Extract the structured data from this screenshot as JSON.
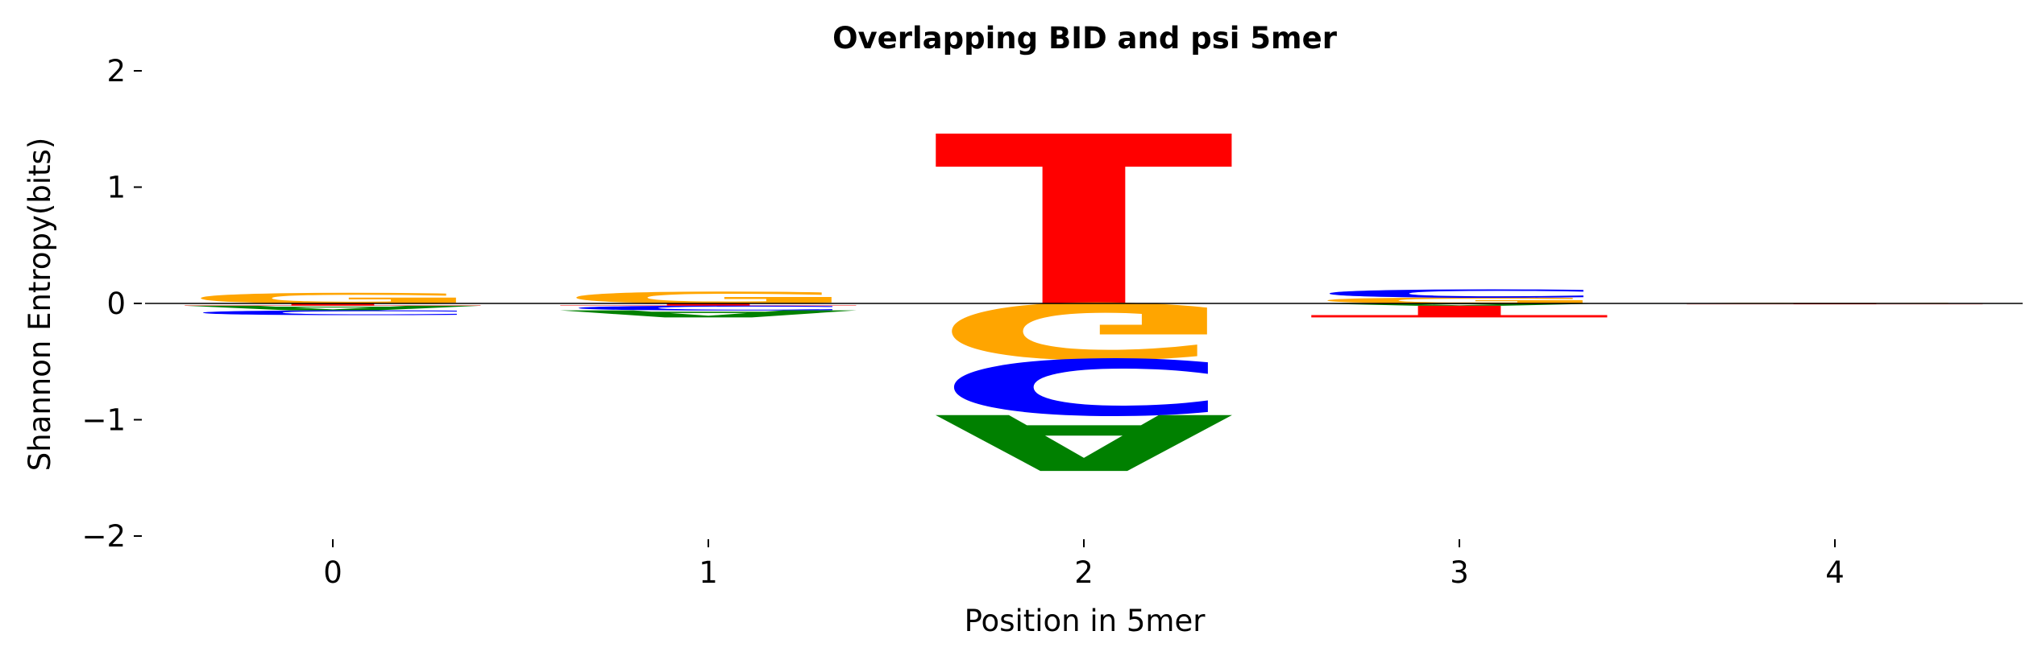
{
  "chart_data": {
    "type": "sequence-logo",
    "title": "Overlapping BID and psi 5mer",
    "xlabel": "Position in 5mer",
    "ylabel": "Shannon Entropy(bits)",
    "ylim": [
      -2,
      2
    ],
    "yticks": [
      2,
      1,
      0,
      -1,
      -2
    ],
    "ytick_labels": [
      "2",
      "1",
      "0",
      "−1",
      "−2"
    ],
    "xticks": [
      0,
      1,
      2,
      3,
      4
    ],
    "xtick_labels": [
      "0",
      "1",
      "2",
      "3",
      "4"
    ],
    "grid": false,
    "colors": {
      "A": "#008000",
      "C": "#0000ff",
      "G": "#ffa500",
      "T": "#ff0000"
    },
    "positions": [
      {
        "position": 0,
        "above": [
          {
            "letter": "G",
            "value": 0.09
          }
        ],
        "below": [
          {
            "letter": "T",
            "value": 0.02
          },
          {
            "letter": "A",
            "value": 0.04
          },
          {
            "letter": "C",
            "value": 0.04
          }
        ]
      },
      {
        "position": 1,
        "above": [
          {
            "letter": "G",
            "value": 0.1
          }
        ],
        "below": [
          {
            "letter": "T",
            "value": 0.02
          },
          {
            "letter": "C",
            "value": 0.04
          },
          {
            "letter": "A",
            "value": 0.06
          }
        ]
      },
      {
        "position": 2,
        "above": [
          {
            "letter": "T",
            "value": 1.46
          }
        ],
        "below": [
          {
            "letter": "G",
            "value": 0.48
          },
          {
            "letter": "C",
            "value": 0.48
          },
          {
            "letter": "A",
            "value": 0.48
          }
        ]
      },
      {
        "position": 3,
        "above": [
          {
            "letter": "G",
            "value": 0.05
          },
          {
            "letter": "C",
            "value": 0.07
          }
        ],
        "below": [
          {
            "letter": "A",
            "value": 0.02
          },
          {
            "letter": "T",
            "value": 0.1
          }
        ]
      },
      {
        "position": 4,
        "above": [
          {
            "letter": "G",
            "value": 0.006
          }
        ],
        "below": [
          {
            "letter": "T",
            "value": 0.008
          }
        ]
      }
    ]
  }
}
